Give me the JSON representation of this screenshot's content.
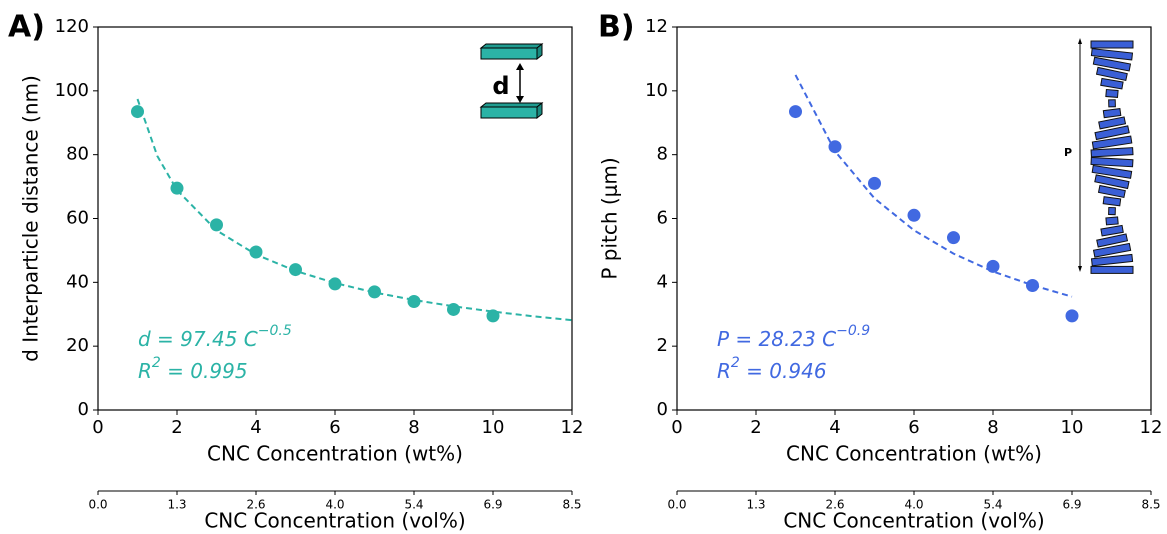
{
  "chart_data": [
    {
      "type": "scatter",
      "panel_label": "A)",
      "xlabel": "CNC Concentration (wt%)",
      "ylabel": "d Interparticle distance (nm)",
      "xlim": [
        0,
        12
      ],
      "ylim": [
        0,
        120
      ],
      "xticks": [
        0,
        2,
        4,
        6,
        8,
        10,
        12
      ],
      "yticks": [
        0,
        20,
        40,
        60,
        80,
        100,
        120
      ],
      "x2label": "CNC Concentration (vol%)",
      "x2ticks": [
        {
          "value": 0,
          "label": "0.0"
        },
        1.3,
        2.6,
        {
          "value": 4,
          "label": "4.0"
        },
        5.4,
        6.9,
        8.5
      ],
      "series": [
        {
          "style": "marker",
          "color": "#2bb3a6",
          "x": [
            1,
            2,
            3,
            4,
            5,
            6,
            7,
            8,
            9,
            10
          ],
          "values": [
            93.5,
            69.5,
            58,
            49.5,
            44,
            39.5,
            37,
            34,
            31.5,
            29.5
          ]
        },
        {
          "style": "dashed",
          "color": "#2bb3a6",
          "x": [
            1,
            1.5,
            2,
            3,
            4,
            5,
            6,
            7,
            8,
            9,
            10,
            11,
            12
          ],
          "values": [
            97.45,
            79.57,
            68.91,
            56.26,
            48.73,
            43.58,
            39.78,
            36.83,
            34.45,
            32.48,
            30.82,
            29.38,
            28.13
          ]
        }
      ],
      "equation": {
        "base": "d = 97.45 C",
        "exponent": "−0.5"
      },
      "r2": {
        "base": "R",
        "exponent": "2",
        "rest": " = 0.995"
      },
      "inset_label": "d"
    },
    {
      "type": "scatter",
      "panel_label": "B)",
      "xlabel": "CNC Concentration (wt%)",
      "ylabel": "P pitch (μm)",
      "xlim": [
        0,
        12
      ],
      "ylim": [
        0,
        12
      ],
      "xticks": [
        0,
        2,
        4,
        6,
        8,
        10,
        12
      ],
      "yticks": [
        0,
        2,
        4,
        6,
        8,
        10,
        12
      ],
      "x2label": "CNC Concentration (vol%)",
      "x2ticks": [
        {
          "value": 0,
          "label": "0.0"
        },
        1.3,
        2.6,
        {
          "value": 4,
          "label": "4.0"
        },
        5.4,
        6.9,
        8.5
      ],
      "series": [
        {
          "style": "marker",
          "color": "#4169e1",
          "x": [
            3,
            4,
            5,
            6,
            7,
            8,
            9,
            10
          ],
          "values": [
            9.35,
            8.25,
            7.1,
            6.1,
            5.4,
            4.5,
            3.9,
            2.95
          ]
        },
        {
          "style": "dashed",
          "color": "#4169e1",
          "x": [
            3,
            4,
            5,
            6,
            7,
            8,
            9,
            10
          ],
          "values": [
            10.5,
            8.11,
            6.63,
            5.63,
            4.9,
            4.34,
            3.91,
            3.55
          ]
        }
      ],
      "equation": {
        "base": "P = 28.23 C",
        "exponent": "−0.9"
      },
      "r2": {
        "base": "R",
        "exponent": "2",
        "rest": " = 0.946"
      },
      "inset_label": "P"
    }
  ]
}
